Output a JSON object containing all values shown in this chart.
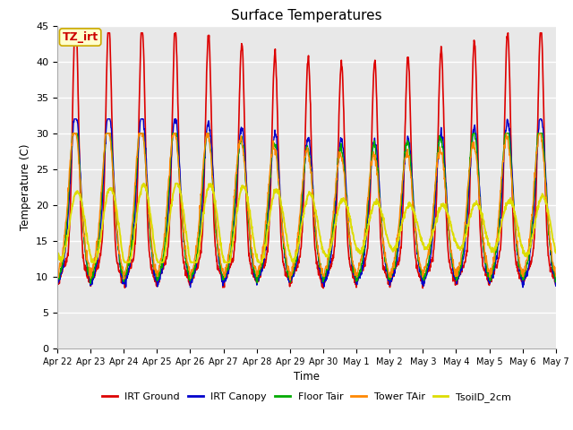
{
  "title": "Surface Temperatures",
  "xlabel": "Time",
  "ylabel": "Temperature (C)",
  "annotation_text": "TZ_irt",
  "annotation_bg": "#ffffcc",
  "annotation_border": "#ccaa00",
  "annotation_fg": "#cc0000",
  "ylim": [
    0,
    45
  ],
  "yticks": [
    0,
    5,
    10,
    15,
    20,
    25,
    30,
    35,
    40,
    45
  ],
  "series": {
    "IRT Ground": {
      "color": "#dd0000",
      "lw": 1.2
    },
    "IRT Canopy": {
      "color": "#0000cc",
      "lw": 1.0
    },
    "Floor Tair": {
      "color": "#00aa00",
      "lw": 1.0
    },
    "Tower TAir": {
      "color": "#ff8800",
      "lw": 1.0
    },
    "TsoilD_2cm": {
      "color": "#dddd00",
      "lw": 1.4
    }
  },
  "x_tick_labels": [
    "Apr 22",
    "Apr 23",
    "Apr 24",
    "Apr 25",
    "Apr 26",
    "Apr 27",
    "Apr 28",
    "Apr 29",
    "Apr 30",
    "May 1",
    "May 2",
    "May 3",
    "May 4",
    "May 5",
    "May 6",
    "May 7"
  ],
  "n_days": 15,
  "ppd": 96,
  "plot_bg": "#e8e8e8"
}
